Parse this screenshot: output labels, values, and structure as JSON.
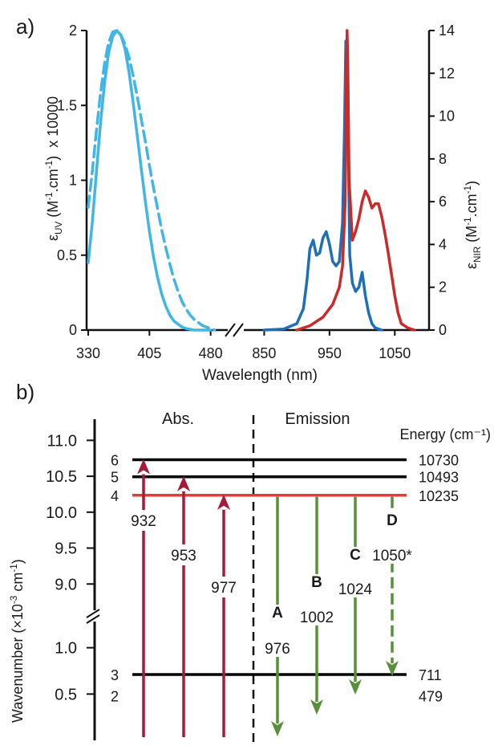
{
  "colors": {
    "uv_light": "#41B5E6",
    "nir_blue": "#1F6FB8",
    "nir_red": "#C92A2A",
    "abs": "#A51C3A",
    "emission": "#5A8F3A",
    "level_red": "#E53A3A",
    "level_blue_label": "#2B86C5"
  },
  "chart_data": [
    {
      "type": "line",
      "panel_label": "a)",
      "xlabel": "Wavelength (nm)",
      "ylabel_left": {
        "base": "ε",
        "sub": "UV",
        "mid": " (M",
        "sup1": "-1",
        "rest": ".cm",
        "sup2": "-1",
        "close": ")",
        "scale": "x 10000"
      },
      "ylabel_right": {
        "base": "ε",
        "sub": "NIR",
        "mid": " (M",
        "sup1": "-1",
        "rest": ".cm",
        "sup2": "-1",
        "close": ")"
      },
      "segments": [
        {
          "xlim": [
            330,
            500
          ],
          "x_ticks": [
            "330",
            "405",
            "480"
          ],
          "x_tick_values": [
            330,
            405,
            480
          ]
        },
        {
          "xlim": [
            820,
            1100
          ],
          "x_ticks": [
            "850",
            "950",
            "1050"
          ],
          "x_tick_values": [
            850,
            950,
            1050
          ]
        }
      ],
      "ylim_left": [
        0,
        2
      ],
      "y_ticks_left": [
        "0",
        "0.5",
        "1",
        "1.5",
        "2"
      ],
      "ylim_right": [
        0,
        14
      ],
      "y_ticks_right": [
        "0",
        "2",
        "4",
        "6",
        "8",
        "10",
        "12",
        "14"
      ],
      "series": [
        {
          "axis": "left",
          "style": "solid",
          "color": "#41B5E6",
          "x": [
            330,
            335,
            340,
            345,
            350,
            355,
            360,
            365,
            370,
            375,
            380,
            385,
            390,
            395,
            400,
            405,
            410,
            415,
            420,
            425,
            430,
            435,
            440,
            445,
            450,
            455,
            460,
            465,
            470,
            475,
            480
          ],
          "y": [
            0.45,
            0.72,
            1.05,
            1.38,
            1.65,
            1.85,
            1.96,
            2.0,
            1.97,
            1.88,
            1.72,
            1.52,
            1.3,
            1.08,
            0.86,
            0.66,
            0.49,
            0.35,
            0.24,
            0.16,
            0.1,
            0.06,
            0.04,
            0.02,
            0.01,
            0.005,
            0,
            0,
            0,
            0,
            0
          ]
        },
        {
          "axis": "left",
          "style": "dashed",
          "color": "#41B5E6",
          "x": [
            330,
            335,
            340,
            345,
            350,
            355,
            360,
            365,
            370,
            375,
            380,
            385,
            390,
            395,
            400,
            405,
            410,
            415,
            420,
            425,
            430,
            435,
            440,
            445,
            450,
            455,
            460,
            465,
            470,
            475,
            480,
            485
          ],
          "y": [
            0.82,
            1.06,
            1.33,
            1.58,
            1.78,
            1.92,
            1.99,
            2.0,
            1.97,
            1.91,
            1.82,
            1.7,
            1.56,
            1.41,
            1.26,
            1.1,
            0.95,
            0.81,
            0.67,
            0.55,
            0.44,
            0.34,
            0.26,
            0.19,
            0.14,
            0.1,
            0.07,
            0.05,
            0.03,
            0.02,
            0.01,
            0
          ]
        },
        {
          "axis": "right",
          "style": "solid",
          "color": "#1F6FB8",
          "x": [
            850,
            880,
            900,
            910,
            915,
            920,
            925,
            930,
            935,
            940,
            945,
            950,
            955,
            960,
            965,
            970,
            973,
            975,
            977,
            979,
            981,
            985,
            990,
            995,
            1000,
            1005,
            1010,
            1015,
            1020,
            1030
          ],
          "y": [
            0,
            0.05,
            0.3,
            1.0,
            2.2,
            3.8,
            4.2,
            3.5,
            3.6,
            4.3,
            4.6,
            4.0,
            3.2,
            3.0,
            3.2,
            5.0,
            9.5,
            13.5,
            13.3,
            8.0,
            3.5,
            2.2,
            1.8,
            2.0,
            2.7,
            1.6,
            0.8,
            0.3,
            0.1,
            0
          ]
        },
        {
          "axis": "right",
          "style": "solid",
          "color": "#C92A2A",
          "x": [
            900,
            920,
            940,
            955,
            965,
            970,
            974,
            976,
            977,
            978,
            980,
            985,
            990,
            995,
            1000,
            1005,
            1010,
            1015,
            1020,
            1025,
            1030,
            1035,
            1040,
            1045,
            1050,
            1055,
            1060,
            1070,
            1080
          ],
          "y": [
            0,
            0.2,
            0.6,
            1.2,
            2.0,
            3.0,
            6.0,
            12.0,
            14.0,
            12.5,
            7.0,
            4.2,
            4.6,
            5.2,
            6.0,
            6.5,
            6.2,
            5.7,
            5.9,
            5.9,
            5.3,
            4.5,
            3.6,
            2.6,
            1.6,
            0.8,
            0.3,
            0.1,
            0
          ]
        }
      ]
    },
    {
      "type": "energy_level_diagram",
      "panel_label": "b)",
      "ylabel": {
        "text": "Wavenumber (×10",
        "sup": "-3",
        "rest": " cm",
        "sup2": "-1",
        "close": ")"
      },
      "upper_axis": {
        "ylim": [
          8.5,
          11.25
        ],
        "ticks": [
          "9.0",
          "9.5",
          "10.0",
          "10.5",
          "11.0"
        ],
        "tick_values": [
          9.0,
          9.5,
          10.0,
          10.5,
          11.0
        ]
      },
      "lower_axis": {
        "ylim": [
          0,
          1.3
        ],
        "ticks": [
          "0.5",
          "1.0"
        ],
        "tick_values": [
          0.5,
          1.0
        ]
      },
      "abs_title": "Abs.",
      "emission_title": "Emission",
      "energy_header": "Energy (cm⁻¹)",
      "levels": [
        {
          "label": "6",
          "energy": "10730",
          "value_k": 10.73,
          "panel": "upper",
          "color": "#000000"
        },
        {
          "label": "5",
          "energy": "10493",
          "value_k": 10.493,
          "panel": "upper",
          "color": "#000000"
        },
        {
          "label": "4",
          "energy": "10235",
          "value_k": 10.235,
          "panel": "upper",
          "color": "#E53A3A"
        },
        {
          "label": "3",
          "energy": "711",
          "value_k": 0.711,
          "panel": "lower",
          "color": "#000000"
        },
        {
          "label": "2",
          "energy": "479",
          "value_k": 0.479,
          "panel": "lower",
          "color": null
        }
      ],
      "absorption": [
        {
          "label": "932",
          "to_level": "6"
        },
        {
          "label": "953",
          "to_level": "5"
        },
        {
          "label": "977",
          "to_level": "4"
        }
      ],
      "emission": [
        {
          "letter": "A",
          "label": "976",
          "to_level": "2"
        },
        {
          "letter": "B",
          "label": "1002",
          "to_level": "2"
        },
        {
          "letter": "C",
          "label": "1024",
          "to_level": "2"
        },
        {
          "letter": "D",
          "label": "1050*",
          "to_level": "3"
        }
      ]
    }
  ]
}
